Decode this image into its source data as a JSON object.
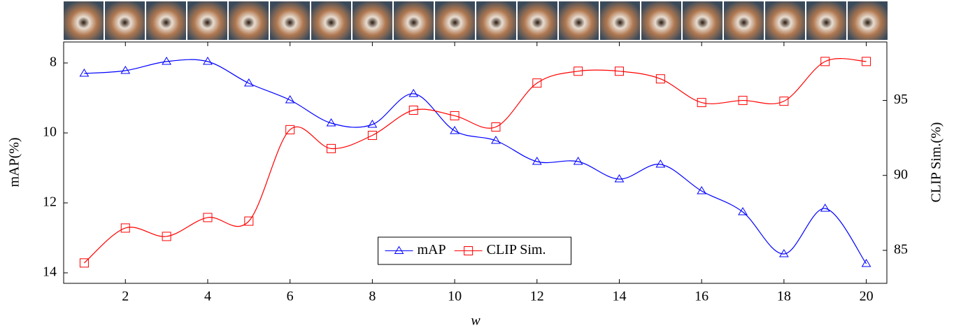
{
  "chart_data": {
    "type": "line",
    "x_label": "w",
    "y_label": "mAP(%)",
    "y2_label": "CLIP Sim.(%)",
    "x": [
      1,
      2,
      3,
      4,
      5,
      6,
      7,
      8,
      9,
      10,
      11,
      12,
      13,
      14,
      15,
      16,
      17,
      18,
      19,
      20
    ],
    "xlim": [
      0.5,
      20.5
    ],
    "xticks": [
      2,
      4,
      6,
      8,
      10,
      12,
      14,
      16,
      18,
      20
    ],
    "ylim": [
      14.3,
      7.4
    ],
    "yticks": [
      8,
      10,
      12,
      14
    ],
    "y2lim": [
      82.8,
      98.9
    ],
    "y2ticks": [
      85,
      90,
      95
    ],
    "smooth": true,
    "legend": "lower center",
    "series": [
      {
        "name": "mAP",
        "color": "#0000ff",
        "marker": "triangle",
        "values": [
          8.3,
          8.22,
          7.96,
          7.96,
          8.58,
          9.06,
          9.72,
          9.76,
          8.88,
          9.94,
          10.22,
          10.82,
          10.82,
          11.32,
          10.9,
          11.66,
          12.26,
          13.46,
          12.16,
          13.74
        ]
      },
      {
        "name": "CLIP Sim.",
        "color": "#ff0000",
        "marker": "square",
        "axis": "y2",
        "values": [
          84.16,
          86.49,
          85.93,
          87.19,
          86.95,
          93.05,
          91.79,
          92.67,
          94.35,
          93.98,
          93.23,
          96.16,
          96.95,
          96.95,
          96.44,
          94.86,
          95.0,
          94.95,
          97.6,
          97.6
        ]
      }
    ]
  }
}
